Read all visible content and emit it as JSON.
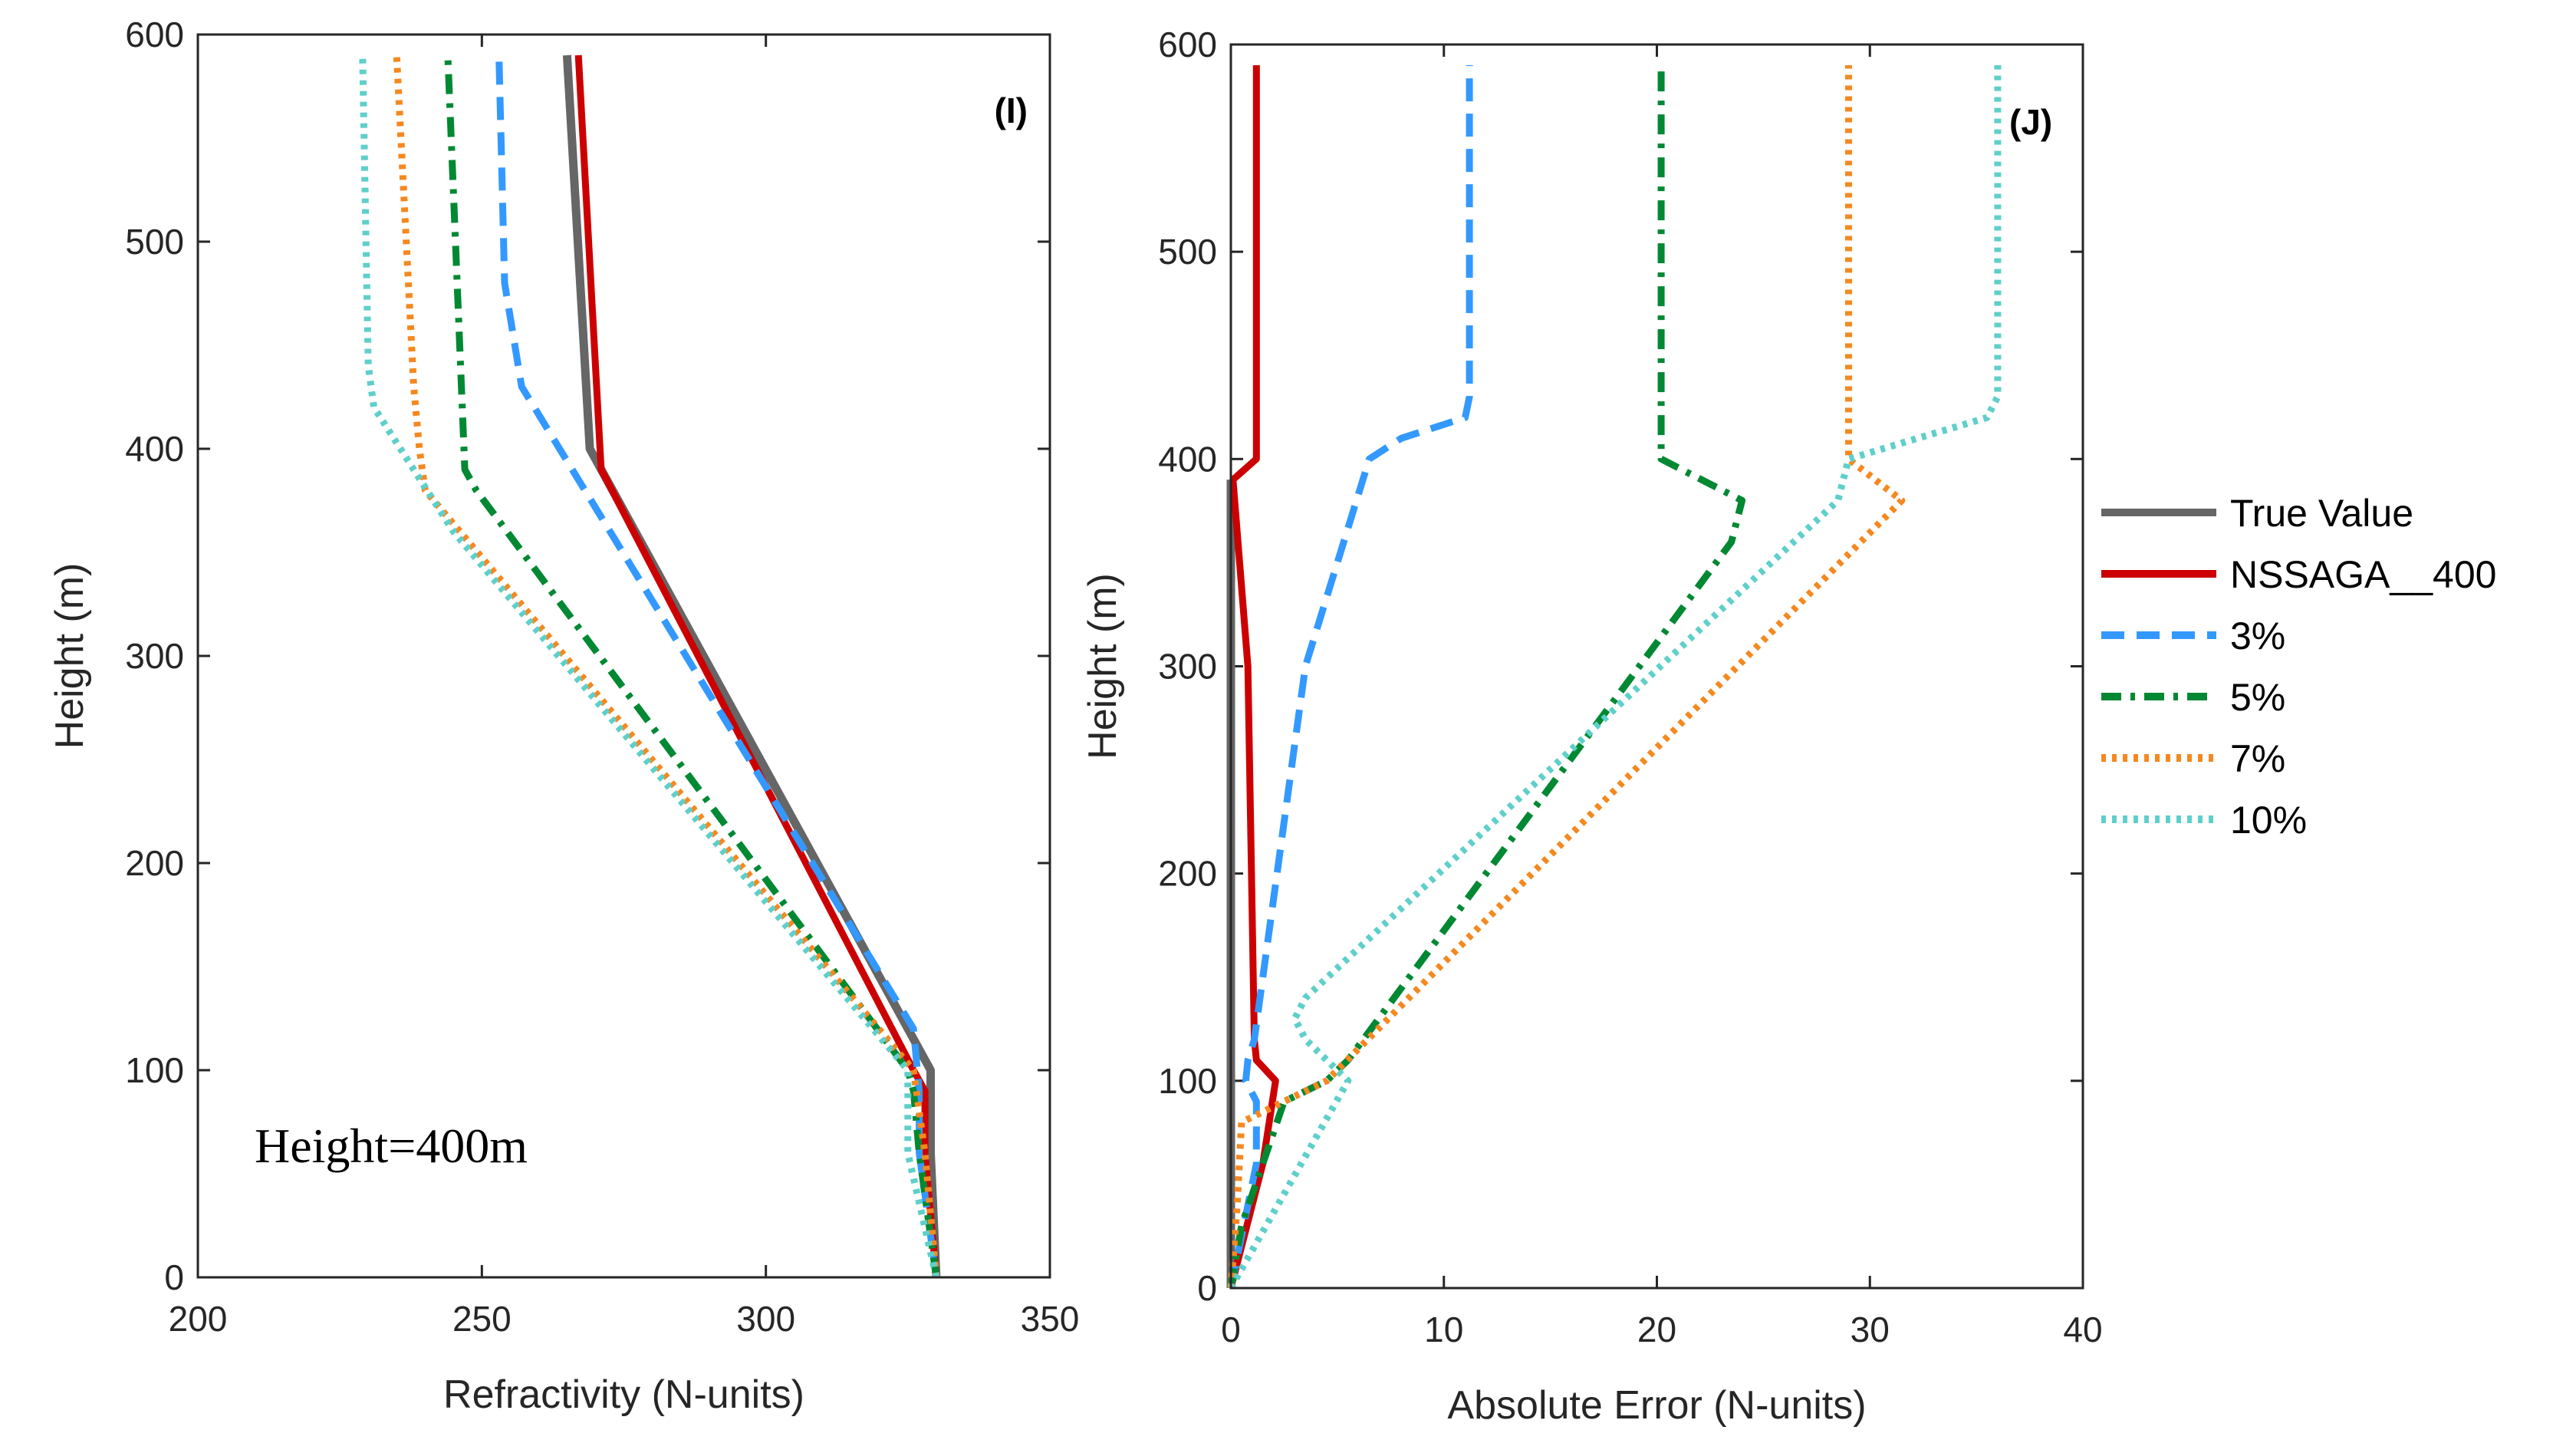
{
  "chart_data": [
    {
      "type": "line",
      "panel_label": "(I)",
      "xlabel": "Refractivity (N-units)",
      "ylabel": "Height (m)",
      "xlim": [
        200,
        350
      ],
      "ylim": [
        0,
        600
      ],
      "xticks": [
        200,
        250,
        300,
        350
      ],
      "yticks": [
        0,
        100,
        200,
        300,
        400,
        500,
        600
      ],
      "annotation": "Height=400m",
      "series": [
        {
          "name": "True Value",
          "color": "#666666",
          "dash": "solid",
          "x": [
            330,
            329,
            329,
            269,
            265
          ],
          "y": [
            0,
            60,
            100,
            400,
            590
          ]
        },
        {
          "name": "NSSAGA__400",
          "color": "#cc0000",
          "dash": "solid",
          "x": [
            330,
            328,
            328,
            326,
            271,
            267
          ],
          "y": [
            0,
            60,
            90,
            100,
            390,
            590
          ]
        },
        {
          "name": "3%",
          "color": "#3399ff",
          "dash": "dashed",
          "x": [
            330,
            327,
            327,
            326,
            257,
            254,
            253
          ],
          "y": [
            0,
            60,
            90,
            120,
            430,
            480,
            590
          ]
        },
        {
          "name": "5%",
          "color": "#008833",
          "dash": "dashdot",
          "x": [
            330,
            327,
            326,
            325,
            249,
            247,
            244
          ],
          "y": [
            0,
            60,
            90,
            100,
            380,
            390,
            590
          ]
        },
        {
          "name": "7%",
          "color": "#f5881f",
          "dash": "dotted",
          "x": [
            330,
            328,
            326,
            240,
            239,
            238,
            235
          ],
          "y": [
            0,
            60,
            100,
            380,
            400,
            430,
            590
          ]
        },
        {
          "name": "10%",
          "color": "#5fcfca",
          "dash": "dotted",
          "x": [
            330,
            325,
            325,
            245,
            231,
            230,
            229
          ],
          "y": [
            0,
            60,
            100,
            360,
            420,
            440,
            590
          ]
        }
      ]
    },
    {
      "type": "line",
      "panel_label": "(J)",
      "xlabel": "Absolute Error (N-units)",
      "ylabel": "Height (m)",
      "xlim": [
        0,
        40
      ],
      "ylim": [
        0,
        600
      ],
      "xticks": [
        0,
        10,
        20,
        30,
        40
      ],
      "yticks": [
        0,
        100,
        200,
        300,
        400,
        500,
        600
      ],
      "series": [
        {
          "name": "True Value",
          "color": "#666666",
          "dash": "solid",
          "x": [
            0,
            0
          ],
          "y": [
            0,
            390
          ]
        },
        {
          "name": "NSSAGA__400",
          "color": "#cc0000",
          "dash": "solid",
          "x": [
            0,
            1.5,
            2.1,
            1.2,
            1.1,
            0.8,
            0.1,
            1.2,
            1.2
          ],
          "y": [
            0,
            60,
            100,
            110,
            120,
            300,
            390,
            400,
            590
          ]
        },
        {
          "name": "3%",
          "color": "#3399ff",
          "dash": "dashed",
          "x": [
            0,
            1.2,
            1.2,
            0.7,
            0.8,
            1.1,
            3.5,
            6.5,
            8,
            11,
            11.2,
            11.2
          ],
          "y": [
            0,
            60,
            90,
            100,
            110,
            120,
            300,
            400,
            410,
            420,
            430,
            590
          ]
        },
        {
          "name": "5%",
          "color": "#008833",
          "dash": "dashdot",
          "x": [
            0,
            0.5,
            2.5,
            4.5,
            5.5,
            23.5,
            24,
            20.2,
            20.2
          ],
          "y": [
            0,
            30,
            90,
            100,
            110,
            360,
            380,
            400,
            590
          ]
        },
        {
          "name": "7%",
          "color": "#f5881f",
          "dash": "dotted",
          "x": [
            0,
            0.3,
            0.5,
            2.5,
            4.5,
            31.5,
            29,
            29,
            29
          ],
          "y": [
            0,
            40,
            80,
            90,
            100,
            380,
            400,
            410,
            590
          ]
        },
        {
          "name": "10%",
          "color": "#5fcfca",
          "dash": "dotted",
          "x": [
            0,
            5.5,
            3.5,
            3,
            3.5,
            28.5,
            29,
            35.5,
            36,
            36
          ],
          "y": [
            0,
            100,
            120,
            130,
            140,
            380,
            400,
            420,
            430,
            590
          ]
        }
      ]
    }
  ],
  "legend": {
    "position": "right",
    "entries": [
      {
        "label": "True Value",
        "color": "#666666",
        "dash": "solid"
      },
      {
        "label": "NSSAGA__400",
        "color": "#cc0000",
        "dash": "solid"
      },
      {
        "label": "3%",
        "color": "#3399ff",
        "dash": "dashed"
      },
      {
        "label": "5%",
        "color": "#008833",
        "dash": "dashdot"
      },
      {
        "label": "7%",
        "color": "#f5881f",
        "dash": "dotted"
      },
      {
        "label": "10%",
        "color": "#5fcfca",
        "dash": "dotted"
      }
    ]
  }
}
